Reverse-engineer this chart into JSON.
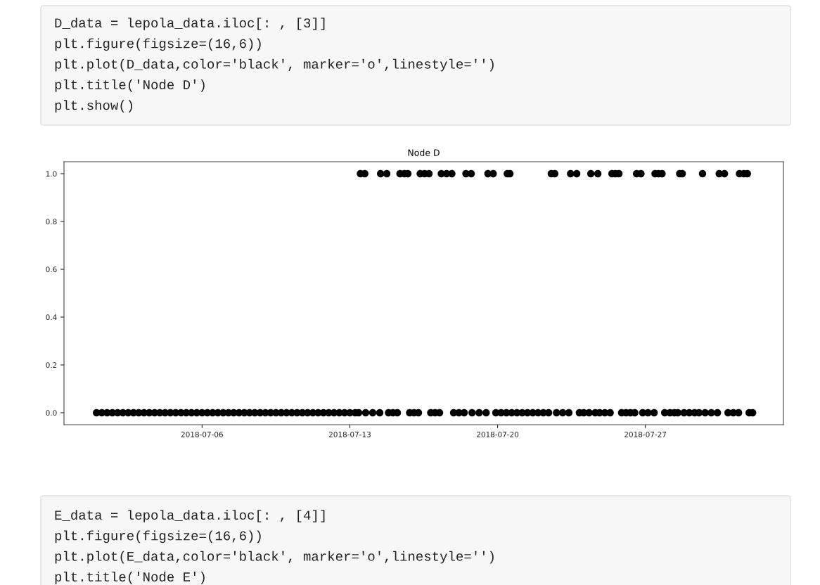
{
  "chart_data": {
    "type": "scatter",
    "title": "Node D",
    "annotations": [
      "D_data = lepola_data.iloc[: , [3]]",
      "plt.figure(figsize=(16,6))",
      "plt.plot(D_data,color='black', marker='o',linestyle='')",
      "plt.title('Node D')",
      "plt.show()",
      "E_data = lepola_data.iloc[: , [4]]",
      "plt.figure(figsize=(16,6))",
      "plt.plot(E_data,color='black', marker='o',linestyle='')",
      "plt.title('Node E')"
    ],
    "xlim": [
      "2018-06-29T11:00",
      "2018-08-02T13:00"
    ],
    "xticks": [
      "2018-07-06",
      "2018-07-13",
      "2018-07-20",
      "2018-07-27"
    ],
    "ylim": [
      -0.05,
      1.05
    ],
    "yticks": [
      {
        "value": 0,
        "label": "0.0"
      },
      {
        "value": 0.2,
        "label": "0.2"
      },
      {
        "value": 0.4,
        "label": "0.4"
      },
      {
        "value": 0.6,
        "label": "0.6"
      },
      {
        "value": 0.8,
        "label": "0.8"
      },
      {
        "value": 1,
        "label": "1.0"
      }
    ],
    "grid": false,
    "legend": false,
    "marker": "circle",
    "series": [
      {
        "color": "#000000",
        "x": [
          "2018-07-13T12:00",
          "2018-07-13T17:00",
          "2018-07-14T11:00",
          "2018-07-14T18:00",
          "2018-07-15T09:00",
          "2018-07-15T14:00",
          "2018-07-15T18:00",
          "2018-07-16T08:00",
          "2018-07-16T13:00",
          "2018-07-16T18:00",
          "2018-07-17T08:00",
          "2018-07-17T14:00",
          "2018-07-17T20:00",
          "2018-07-18T12:00",
          "2018-07-18T18:00",
          "2018-07-19T13:00",
          "2018-07-19T19:00",
          "2018-07-20T11:00",
          "2018-07-20T14:00",
          "2018-07-22T13:00",
          "2018-07-22T17:00",
          "2018-07-23T11:00",
          "2018-07-23T18:00",
          "2018-07-24T10:00",
          "2018-07-24T18:00",
          "2018-07-25T10:00",
          "2018-07-25T14:00",
          "2018-07-25T18:00",
          "2018-07-26T14:00",
          "2018-07-26T19:00",
          "2018-07-27T11:00",
          "2018-07-27T15:00",
          "2018-07-27T19:00",
          "2018-07-28T15:00",
          "2018-07-28T18:00",
          "2018-07-29T17:00",
          "2018-07-30T12:00",
          "2018-07-30T18:00",
          "2018-07-31T11:00",
          "2018-07-31T16:00",
          "2018-07-31T20:00",
          "2018-07-01T00:00",
          "2018-07-01T06:00",
          "2018-07-01T12:00",
          "2018-07-01T18:00",
          "2018-07-02T00:00",
          "2018-07-02T06:00",
          "2018-07-02T12:00",
          "2018-07-02T18:00",
          "2018-07-03T00:00",
          "2018-07-03T06:00",
          "2018-07-03T12:00",
          "2018-07-03T18:00",
          "2018-07-04T00:00",
          "2018-07-04T06:00",
          "2018-07-04T12:00",
          "2018-07-04T18:00",
          "2018-07-05T00:00",
          "2018-07-05T06:00",
          "2018-07-05T12:00",
          "2018-07-05T18:00",
          "2018-07-06T00:00",
          "2018-07-06T06:00",
          "2018-07-06T12:00",
          "2018-07-06T18:00",
          "2018-07-07T00:00",
          "2018-07-07T06:00",
          "2018-07-07T12:00",
          "2018-07-07T18:00",
          "2018-07-08T00:00",
          "2018-07-08T06:00",
          "2018-07-08T12:00",
          "2018-07-08T18:00",
          "2018-07-09T00:00",
          "2018-07-09T06:00",
          "2018-07-09T12:00",
          "2018-07-09T18:00",
          "2018-07-10T00:00",
          "2018-07-10T06:00",
          "2018-07-10T12:00",
          "2018-07-10T18:00",
          "2018-07-11T00:00",
          "2018-07-11T06:00",
          "2018-07-11T12:00",
          "2018-07-11T18:00",
          "2018-07-12T00:00",
          "2018-07-12T06:00",
          "2018-07-12T12:00",
          "2018-07-12T18:00",
          "2018-07-13T00:00",
          "2018-07-13T06:00",
          "2018-07-13T10:00",
          "2018-07-13T18:00",
          "2018-07-14T02:00",
          "2018-07-14T10:00",
          "2018-07-14T20:00",
          "2018-07-15T01:00",
          "2018-07-15T06:00",
          "2018-07-15T20:00",
          "2018-07-16T01:00",
          "2018-07-16T06:00",
          "2018-07-16T20:00",
          "2018-07-17T01:00",
          "2018-07-17T06:00",
          "2018-07-17T22:00",
          "2018-07-18T04:00",
          "2018-07-18T10:00",
          "2018-07-18T19:00",
          "2018-07-19T03:00",
          "2018-07-19T11:00",
          "2018-07-19T22:00",
          "2018-07-20T04:00",
          "2018-07-20T10:00",
          "2018-07-20T16:00",
          "2018-07-20T22:00",
          "2018-07-21T04:00",
          "2018-07-21T10:00",
          "2018-07-21T16:00",
          "2018-07-21T22:00",
          "2018-07-22T04:00",
          "2018-07-22T10:00",
          "2018-07-22T19:00",
          "2018-07-23T02:00",
          "2018-07-23T09:00",
          "2018-07-23T21:00",
          "2018-07-24T02:00",
          "2018-07-24T08:00",
          "2018-07-24T15:00",
          "2018-07-24T20:00",
          "2018-07-25T02:00",
          "2018-07-25T08:00",
          "2018-07-25T21:00",
          "2018-07-26T02:00",
          "2018-07-26T07:00",
          "2018-07-26T12:00",
          "2018-07-26T21:00",
          "2018-07-27T03:00",
          "2018-07-27T10:00",
          "2018-07-27T22:00",
          "2018-07-28T04:00",
          "2018-07-28T09:00",
          "2018-07-28T13:00",
          "2018-07-28T20:00",
          "2018-07-29T02:00",
          "2018-07-29T08:00",
          "2018-07-29T13:00",
          "2018-07-29T20:00",
          "2018-07-30T03:00",
          "2018-07-30T10:00",
          "2018-07-30T22:00",
          "2018-07-31T04:00",
          "2018-07-31T10:00",
          "2018-07-31T22:00",
          "2018-08-01T02:00"
        ],
        "values": [
          1,
          1,
          1,
          1,
          1,
          1,
          1,
          1,
          1,
          1,
          1,
          1,
          1,
          1,
          1,
          1,
          1,
          1,
          1,
          1,
          1,
          1,
          1,
          1,
          1,
          1,
          1,
          1,
          1,
          1,
          1,
          1,
          1,
          1,
          1,
          1,
          1,
          1,
          1,
          1,
          1,
          0,
          0,
          0,
          0,
          0,
          0,
          0,
          0,
          0,
          0,
          0,
          0,
          0,
          0,
          0,
          0,
          0,
          0,
          0,
          0,
          0,
          0,
          0,
          0,
          0,
          0,
          0,
          0,
          0,
          0,
          0,
          0,
          0,
          0,
          0,
          0,
          0,
          0,
          0,
          0,
          0,
          0,
          0,
          0,
          0,
          0,
          0,
          0,
          0,
          0,
          0,
          0,
          0,
          0,
          0,
          0,
          0,
          0,
          0,
          0,
          0,
          0,
          0,
          0,
          0,
          0,
          0,
          0,
          0,
          0,
          0,
          0,
          0,
          0,
          0,
          0,
          0,
          0,
          0,
          0,
          0,
          0,
          0,
          0,
          0,
          0,
          0,
          0,
          0,
          0,
          0,
          0,
          0,
          0,
          0,
          0,
          0,
          0,
          0,
          0,
          0,
          0,
          0,
          0,
          0,
          0,
          0,
          0,
          0,
          0,
          0,
          0,
          0
        ]
      }
    ]
  }
}
